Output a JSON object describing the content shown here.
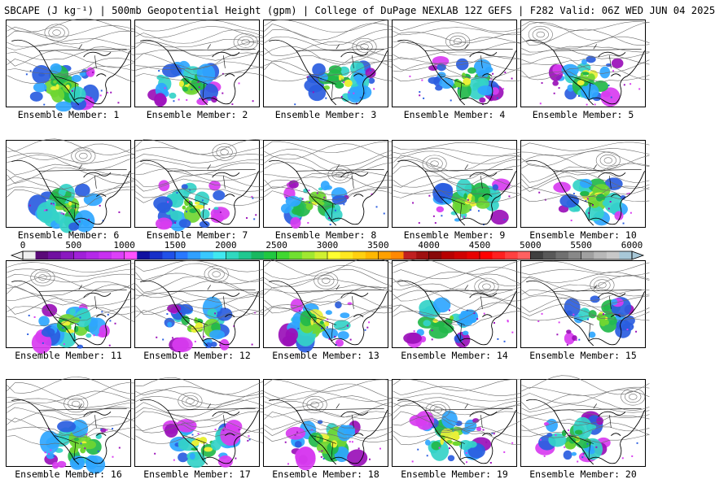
{
  "header": {
    "title": "SBCAPE (J kg⁻¹) | 500mb Geopotential Height (gpm) | College of DuPage NEXLAB 12Z GEFS | F282 Valid: 06Z WED JUN 04 2025"
  },
  "panels": [
    {
      "label": "Ensemble Member: 1"
    },
    {
      "label": "Ensemble Member: 2"
    },
    {
      "label": "Ensemble Member: 3"
    },
    {
      "label": "Ensemble Member: 4"
    },
    {
      "label": "Ensemble Member: 5"
    },
    {
      "label": "Ensemble Member: 6"
    },
    {
      "label": "Ensemble Member: 7"
    },
    {
      "label": "Ensemble Member: 8"
    },
    {
      "label": "Ensemble Member: 9"
    },
    {
      "label": "Ensemble Member: 10"
    },
    {
      "label": "Ensemble Member: 11"
    },
    {
      "label": "Ensemble Member: 12"
    },
    {
      "label": "Ensemble Member: 13"
    },
    {
      "label": "Ensemble Member: 14"
    },
    {
      "label": "Ensemble Member: 15"
    },
    {
      "label": "Ensemble Member: 16"
    },
    {
      "label": "Ensemble Member: 17"
    },
    {
      "label": "Ensemble Member: 18"
    },
    {
      "label": "Ensemble Member: 19"
    },
    {
      "label": "Ensemble Member: 20"
    }
  ],
  "colorbar": {
    "ticks": [
      "0",
      "500",
      "1000",
      "1500",
      "2000",
      "2500",
      "3000",
      "3500",
      "4000",
      "4500",
      "5000",
      "5500",
      "6000"
    ],
    "min": 0,
    "max": 6000,
    "colors": [
      "#f0f0f0",
      "#5a0a78",
      "#7010a0",
      "#8a18c0",
      "#a020d8",
      "#b428e8",
      "#c830f0",
      "#dc40f8",
      "#ff50ff",
      "#1010a0",
      "#1830c8",
      "#2050e8",
      "#2878ff",
      "#30a0ff",
      "#38c8ff",
      "#40e8f0",
      "#30d8c0",
      "#20c890",
      "#18b860",
      "#20c840",
      "#40d830",
      "#70e030",
      "#a0e830",
      "#d0f030",
      "#ffff30",
      "#ffe820",
      "#ffd010",
      "#ffb800",
      "#ffa000",
      "#ff8800",
      "#c02020",
      "#a01010",
      "#880808",
      "#b80000",
      "#d00000",
      "#e80000",
      "#ff0000",
      "#ff2020",
      "#ff4040",
      "#ff6060",
      "#404040",
      "#585858",
      "#707070",
      "#888888",
      "#a0a0a0",
      "#b8b8b8",
      "#c8c8c8",
      "#a8c8d8"
    ],
    "arrow_left_color": "#f0f0f0",
    "arrow_right_color": "#a8c8d8"
  },
  "palette": {
    "cape": [
      "#9a10b8",
      "#d83cf0",
      "#2a5de0",
      "#2fa6ff",
      "#34d3c8",
      "#22b84a",
      "#6fd632",
      "#e8f038"
    ],
    "contour": "#6b6b6b",
    "coast": "#000000"
  }
}
